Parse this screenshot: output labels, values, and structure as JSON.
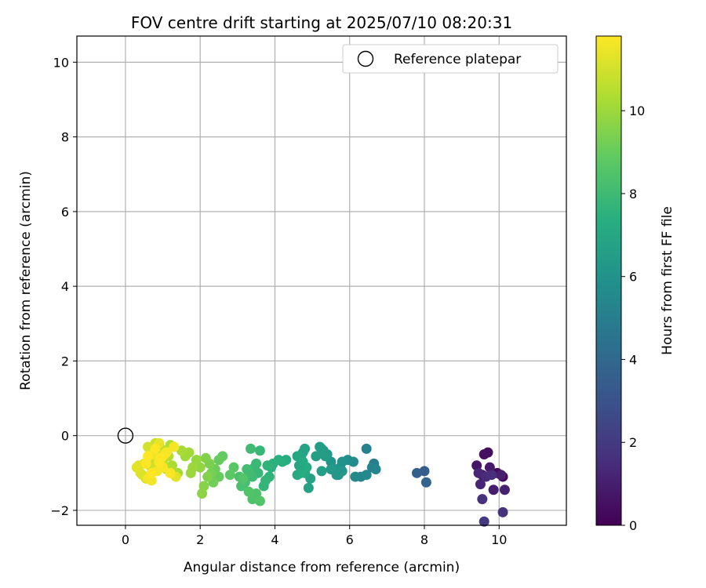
{
  "chart_data": {
    "type": "scatter",
    "title": "FOV centre drift starting at 2025/07/10 08:20:31",
    "xlabel": "Angular distance from reference (arcmin)",
    "ylabel": "Rotation from reference (arcmin)",
    "xlim": [
      -1.3,
      11.8
    ],
    "ylim": [
      -2.4,
      10.7
    ],
    "xticks": [
      0,
      2,
      4,
      6,
      8,
      10
    ],
    "yticks": [
      -2,
      0,
      2,
      4,
      6,
      8,
      10
    ],
    "grid": true,
    "legend": {
      "placement": "top-right",
      "entries": [
        "Reference platepar"
      ]
    },
    "reference_point": {
      "label": "Reference platepar",
      "x": 0,
      "y": 0
    },
    "colorbar": {
      "label": "Hours from first FF file",
      "min": 0,
      "max": 11.8,
      "ticks": [
        0,
        2,
        4,
        6,
        8,
        10
      ],
      "colormap": "viridis"
    },
    "series": [
      {
        "x": [
          9.95,
          10.1,
          9.7,
          9.6,
          9.55,
          9.4,
          9.75,
          9.85,
          10.05,
          10.15,
          9.5,
          9.45,
          9.65,
          9.8,
          9.55,
          10.1,
          9.6,
          8.0,
          7.8,
          8.05,
          6.65,
          6.45,
          6.6,
          6.7,
          6.3,
          6.45,
          6.15,
          6.1,
          5.95,
          5.8,
          5.75,
          5.7,
          5.6,
          5.5,
          5.8,
          5.65,
          5.5,
          5.4,
          5.3,
          5.25,
          5.2,
          5.35,
          5.1,
          5.25,
          4.95,
          4.9,
          4.8,
          4.75,
          4.7,
          4.65,
          4.6,
          4.8,
          4.75,
          4.6,
          4.7,
          4.85,
          4.3,
          4.2,
          4.1,
          3.95,
          3.9,
          3.8,
          3.85,
          3.75,
          3.7,
          3.6,
          3.55,
          3.5,
          3.45,
          3.4,
          3.35,
          3.3,
          3.25,
          3.2,
          3.15,
          3.1,
          3.05,
          3.5,
          3.4,
          3.6,
          3.3,
          3.15,
          2.9,
          2.8,
          2.6,
          2.5,
          2.4,
          2.35,
          2.3,
          2.25,
          2.2,
          2.1,
          2.05,
          2.0,
          2.5,
          2.15,
          1.9,
          1.8,
          1.75,
          1.7,
          1.6,
          1.5,
          1.4,
          1.3,
          1.25,
          1.2,
          1.15,
          1.1,
          1.05,
          1.0,
          0.95,
          0.9,
          0.85,
          0.8,
          0.75,
          0.7,
          0.65,
          0.6,
          0.55,
          0.5,
          0.45,
          0.4,
          0.35,
          0.3,
          1.35,
          1.2,
          0.9,
          0.75,
          0.7,
          0.6,
          1.3,
          1.2,
          1.1,
          1.0,
          0.95,
          0.9,
          0.8,
          0.7,
          0.6,
          0.55,
          1.05,
          0.85
        ],
        "y": [
          -1.0,
          -1.1,
          -0.45,
          -0.5,
          -1.05,
          -0.8,
          -0.85,
          -1.45,
          -1.05,
          -1.45,
          -1.3,
          -1.0,
          -1.1,
          -1.05,
          -1.7,
          -2.05,
          -2.3,
          -0.95,
          -1.0,
          -1.25,
          -0.75,
          -0.35,
          -0.85,
          -0.9,
          -1.1,
          -1.05,
          -1.1,
          -0.7,
          -0.65,
          -0.7,
          -0.85,
          -1.05,
          -0.9,
          -0.7,
          -0.95,
          -1.05,
          -0.9,
          -0.5,
          -0.4,
          -0.35,
          -0.3,
          -0.55,
          -0.55,
          -0.95,
          -1.15,
          -1.4,
          -0.35,
          -0.45,
          -0.6,
          -0.8,
          -0.55,
          -1.0,
          -0.7,
          -1.05,
          -1.0,
          -0.85,
          -0.65,
          -0.7,
          -0.65,
          -0.75,
          -0.85,
          -0.8,
          -1.1,
          -1.2,
          -1.35,
          -0.4,
          -1.0,
          -0.75,
          -0.85,
          -1.1,
          -0.35,
          -1.0,
          -0.9,
          -1.25,
          -1.3,
          -1.35,
          -1.1,
          -1.55,
          -1.7,
          -1.75,
          -1.5,
          -1.15,
          -0.85,
          -1.05,
          -0.55,
          -0.65,
          -0.9,
          -1.25,
          -1.0,
          -0.75,
          -1.1,
          -1.35,
          -1.55,
          -0.85,
          -1.1,
          -0.6,
          -0.65,
          -0.85,
          -1.0,
          -0.45,
          -0.55,
          -0.4,
          -1.0,
          -0.3,
          -0.8,
          -0.25,
          -0.55,
          -0.9,
          -0.4,
          -0.7,
          -0.35,
          -0.85,
          -0.65,
          -0.2,
          -0.95,
          -0.55,
          -0.8,
          -0.3,
          -1.15,
          -0.75,
          -1.05,
          -1.0,
          -0.8,
          -0.85,
          -1.1,
          -1.0,
          -0.2,
          -0.5,
          -1.2,
          -1.15,
          -0.3,
          -1.0,
          -0.45,
          -0.85,
          -0.6,
          -0.7,
          -0.35,
          -1.0,
          -0.55,
          -0.75,
          -0.5,
          -0.95
        ],
        "hours": [
          0.2,
          0.3,
          0.4,
          0.5,
          0.6,
          0.7,
          0.8,
          0.9,
          1.0,
          1.1,
          1.2,
          1.3,
          1.4,
          1.5,
          1.6,
          1.7,
          1.9,
          3.5,
          3.6,
          3.8,
          5.0,
          5.1,
          5.2,
          5.3,
          5.4,
          5.5,
          5.6,
          5.7,
          5.8,
          5.9,
          6.0,
          6.0,
          6.1,
          6.1,
          6.2,
          6.2,
          6.3,
          6.3,
          6.4,
          6.4,
          6.5,
          6.5,
          6.6,
          6.6,
          6.7,
          6.7,
          6.8,
          6.8,
          6.9,
          6.9,
          7.0,
          7.0,
          7.1,
          7.1,
          7.2,
          7.2,
          7.3,
          7.4,
          7.4,
          7.5,
          7.5,
          7.6,
          7.6,
          7.7,
          7.7,
          7.8,
          7.8,
          7.9,
          7.9,
          8.0,
          8.0,
          8.1,
          8.1,
          8.2,
          8.2,
          8.3,
          8.3,
          8.4,
          8.4,
          8.5,
          8.5,
          8.6,
          8.7,
          8.8,
          8.9,
          9.0,
          9.1,
          9.2,
          9.3,
          9.4,
          9.5,
          9.6,
          9.7,
          9.8,
          9.0,
          9.5,
          9.9,
          10.0,
          10.0,
          10.1,
          10.1,
          10.2,
          10.2,
          10.3,
          10.3,
          10.4,
          10.4,
          10.5,
          10.5,
          10.6,
          10.6,
          10.7,
          10.7,
          10.8,
          10.8,
          10.9,
          10.9,
          11.0,
          11.0,
          11.1,
          11.1,
          11.2,
          11.2,
          11.3,
          11.3,
          11.4,
          11.4,
          11.5,
          11.5,
          11.6,
          11.6,
          11.7,
          11.7,
          11.7,
          11.8,
          11.8,
          11.8,
          11.8,
          11.8,
          11.8,
          11.7,
          11.6
        ]
      }
    ]
  }
}
